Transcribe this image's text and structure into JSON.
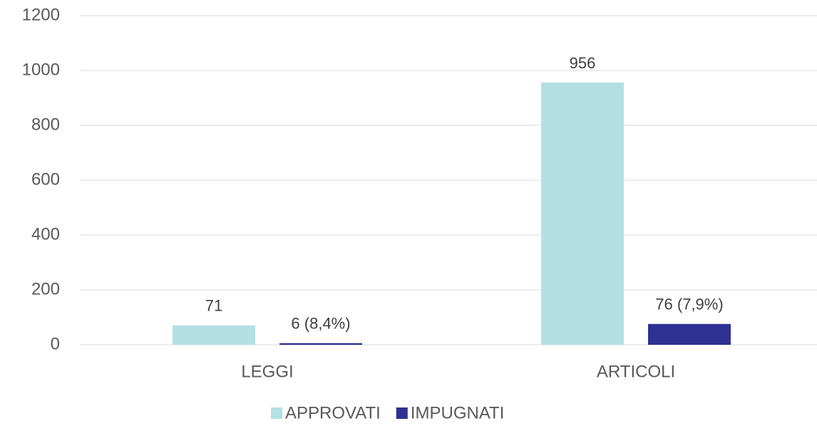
{
  "chart_data": {
    "type": "bar",
    "categories": [
      "LEGGI",
      "ARTICOLI"
    ],
    "series": [
      {
        "name": "APPROVATI",
        "color": "#b4e0e3",
        "values": [
          71,
          956
        ]
      },
      {
        "name": "IMPUGNATI",
        "color": "#2e3192",
        "values": [
          6,
          76
        ],
        "value_labels": [
          "6 (8,4%)",
          "76 (7,9%)"
        ]
      }
    ],
    "ylim": [
      0,
      1200
    ],
    "yticks": [
      0,
      200,
      400,
      600,
      800,
      1000,
      1200
    ],
    "grid": true,
    "legend": "bottom"
  }
}
